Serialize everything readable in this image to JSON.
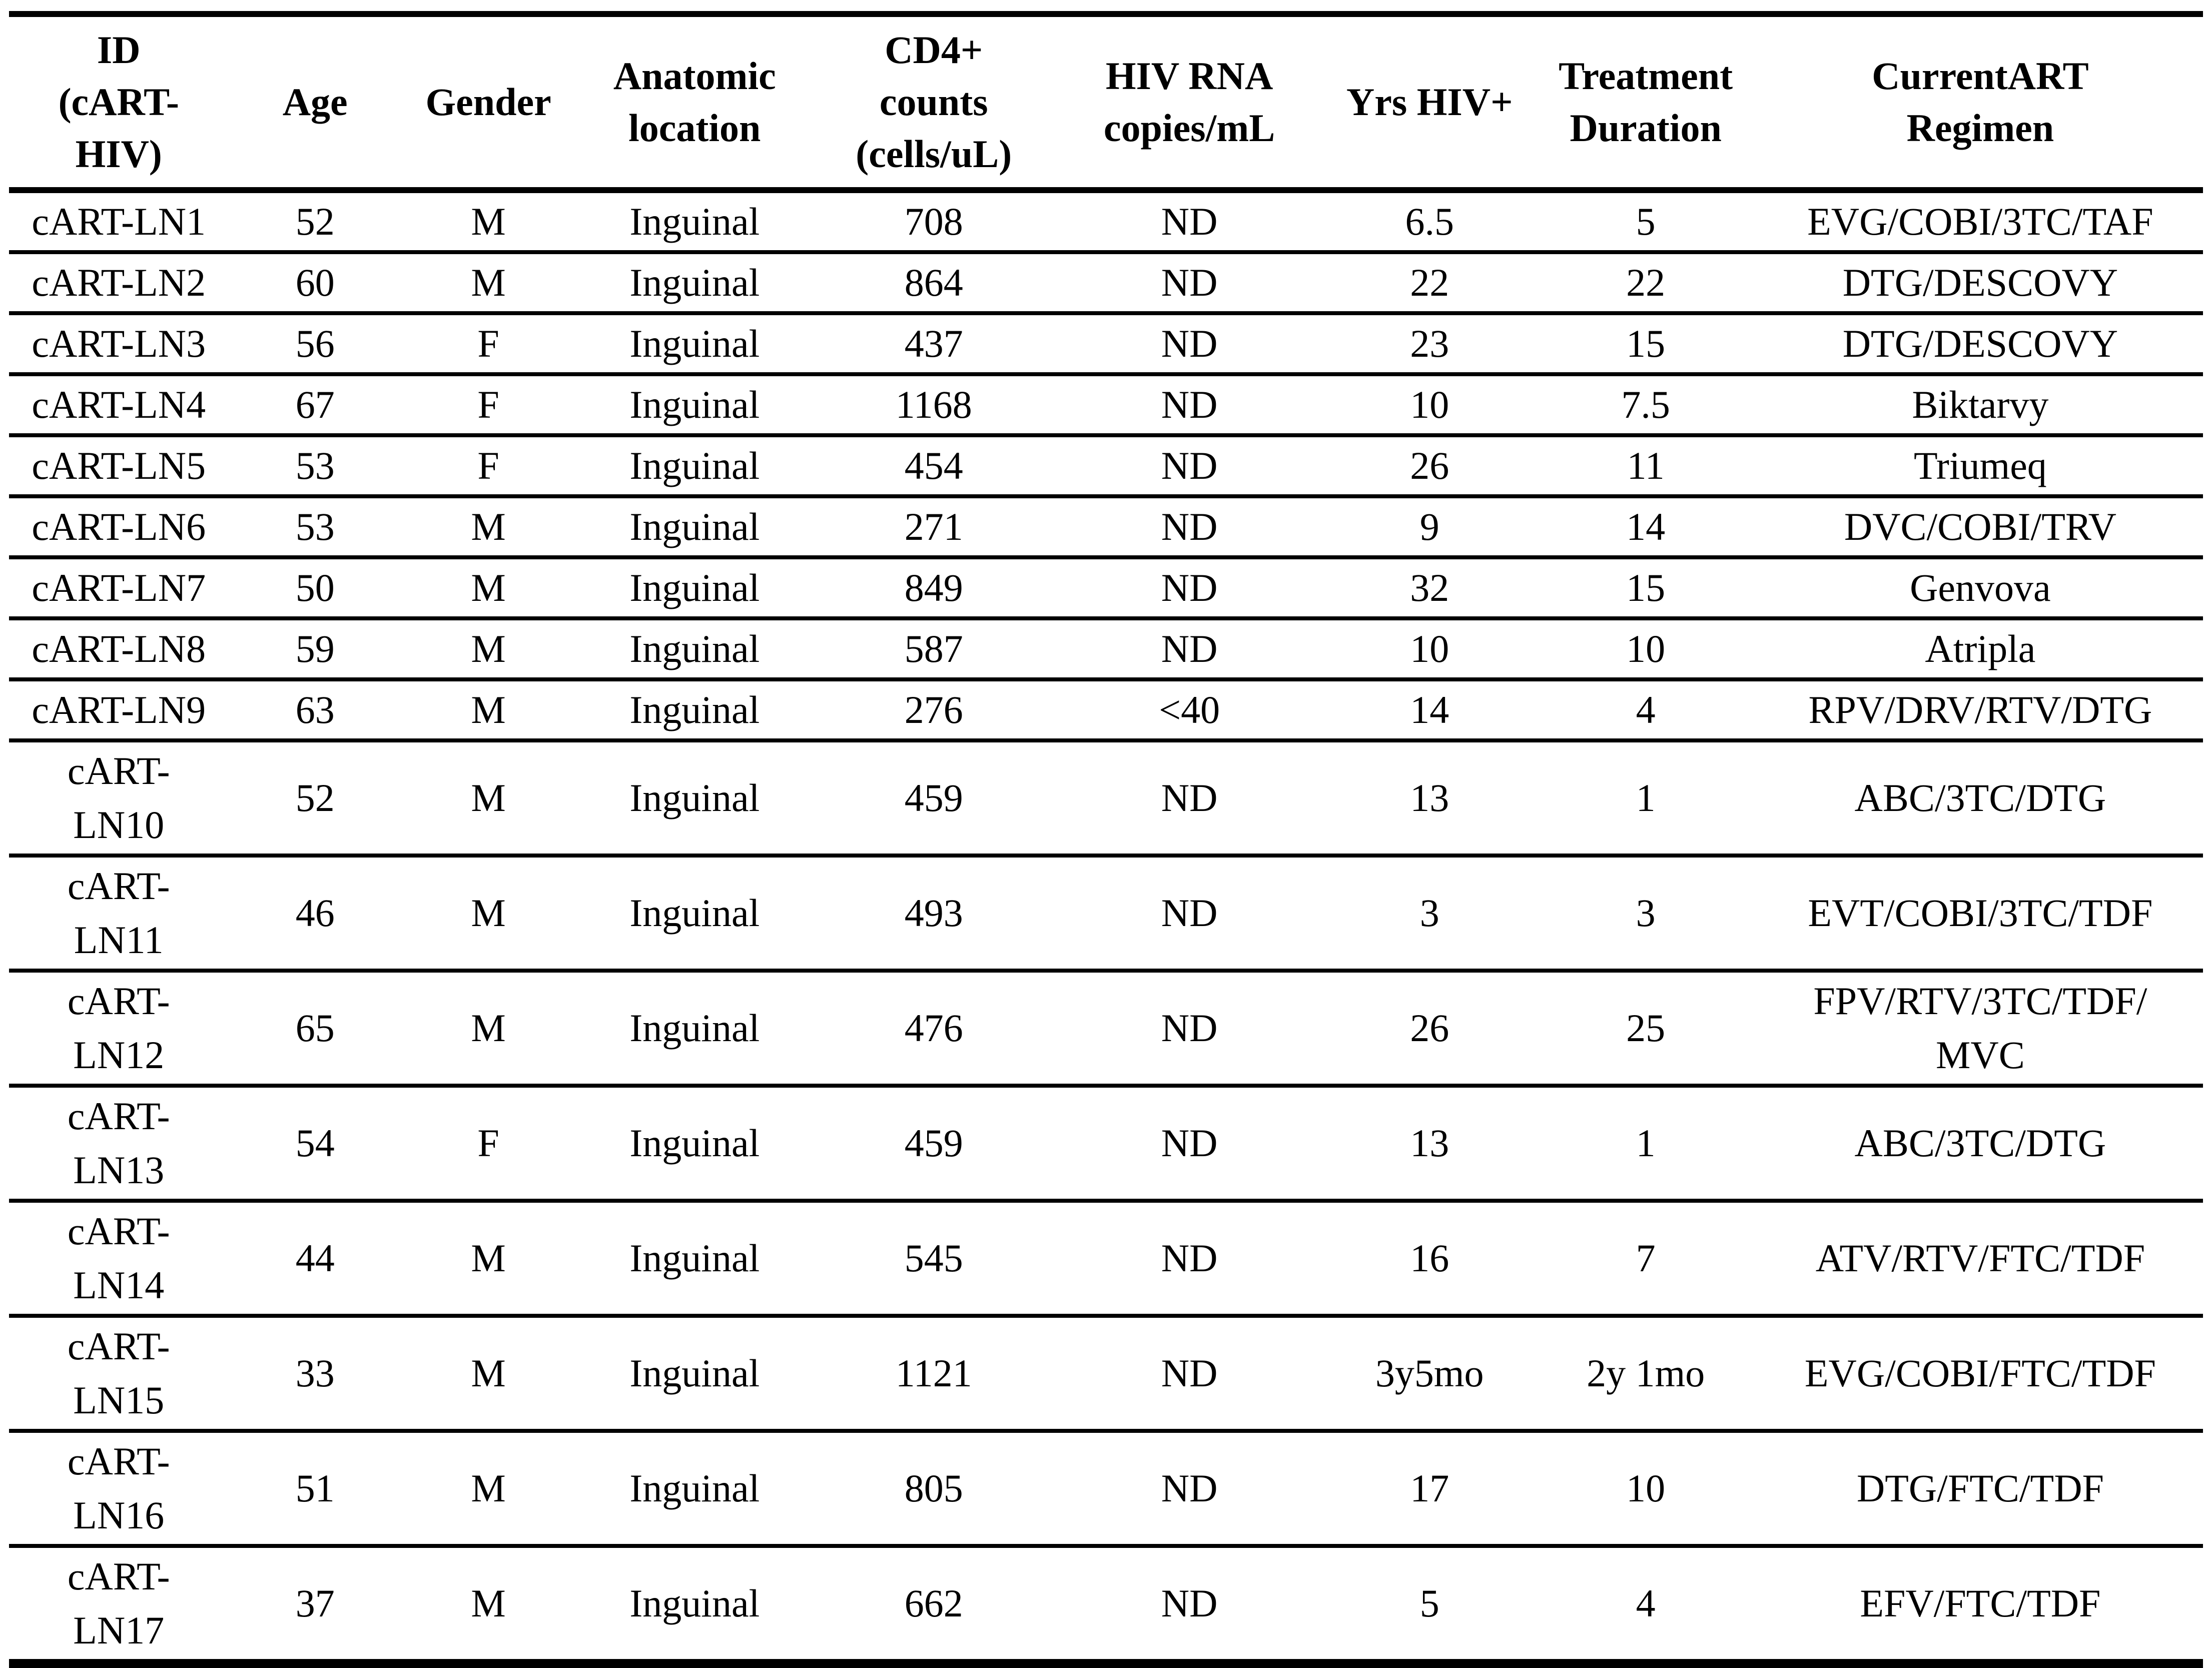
{
  "table": {
    "columns": [
      {
        "key": "id",
        "label": "ID\n(cART-\nHIV)"
      },
      {
        "key": "age",
        "label": "Age"
      },
      {
        "key": "gender",
        "label": "Gender"
      },
      {
        "key": "location",
        "label": "Anatomic\nlocation"
      },
      {
        "key": "cd4",
        "label": "CD4+\ncounts\n(cells/uL)"
      },
      {
        "key": "hiv_rna",
        "label": "HIV RNA\ncopies/mL"
      },
      {
        "key": "yrs_hiv",
        "label": "Yrs HIV+"
      },
      {
        "key": "treatment_duration",
        "label": "Treatment\nDuration"
      },
      {
        "key": "regimen",
        "label": "CurrentART\nRegimen"
      }
    ],
    "rows": [
      {
        "id": "cART-LN1",
        "age": "52",
        "gender": "M",
        "location": "Inguinal",
        "cd4": "708",
        "hiv_rna": "ND",
        "yrs_hiv": "6.5",
        "treatment_duration": "5",
        "regimen": "EVG/COBI/3TC/TAF"
      },
      {
        "id": "cART-LN2",
        "age": "60",
        "gender": "M",
        "location": "Inguinal",
        "cd4": "864",
        "hiv_rna": "ND",
        "yrs_hiv": "22",
        "treatment_duration": "22",
        "regimen": "DTG/DESCOVY"
      },
      {
        "id": "cART-LN3",
        "age": "56",
        "gender": "F",
        "location": "Inguinal",
        "cd4": "437",
        "hiv_rna": "ND",
        "yrs_hiv": "23",
        "treatment_duration": "15",
        "regimen": "DTG/DESCOVY"
      },
      {
        "id": "cART-LN4",
        "age": "67",
        "gender": "F",
        "location": "Inguinal",
        "cd4": "1168",
        "hiv_rna": "ND",
        "yrs_hiv": "10",
        "treatment_duration": "7.5",
        "regimen": "Biktarvy"
      },
      {
        "id": "cART-LN5",
        "age": "53",
        "gender": "F",
        "location": "Inguinal",
        "cd4": "454",
        "hiv_rna": "ND",
        "yrs_hiv": "26",
        "treatment_duration": "11",
        "regimen": "Triumeq"
      },
      {
        "id": "cART-LN6",
        "age": "53",
        "gender": "M",
        "location": "Inguinal",
        "cd4": "271",
        "hiv_rna": "ND",
        "yrs_hiv": "9",
        "treatment_duration": "14",
        "regimen": "DVC/COBI/TRV"
      },
      {
        "id": "cART-LN7",
        "age": "50",
        "gender": "M",
        "location": "Inguinal",
        "cd4": "849",
        "hiv_rna": "ND",
        "yrs_hiv": "32",
        "treatment_duration": "15",
        "regimen": "Genvova"
      },
      {
        "id": "cART-LN8",
        "age": "59",
        "gender": "M",
        "location": "Inguinal",
        "cd4": "587",
        "hiv_rna": "ND",
        "yrs_hiv": "10",
        "treatment_duration": "10",
        "regimen": "Atripla"
      },
      {
        "id": "cART-LN9",
        "age": "63",
        "gender": "M",
        "location": "Inguinal",
        "cd4": "276",
        "hiv_rna": "<40",
        "yrs_hiv": "14",
        "treatment_duration": "4",
        "regimen": "RPV/DRV/RTV/DTG"
      },
      {
        "id": "cART-\nLN10",
        "age": "52",
        "gender": "M",
        "location": "Inguinal",
        "cd4": "459",
        "hiv_rna": "ND",
        "yrs_hiv": "13",
        "treatment_duration": "1",
        "regimen": "ABC/3TC/DTG"
      },
      {
        "id": "cART-\nLN11",
        "age": "46",
        "gender": "M",
        "location": "Inguinal",
        "cd4": "493",
        "hiv_rna": "ND",
        "yrs_hiv": "3",
        "treatment_duration": "3",
        "regimen": "EVT/COBI/3TC/TDF"
      },
      {
        "id": "cART-\nLN12",
        "age": "65",
        "gender": "M",
        "location": "Inguinal",
        "cd4": "476",
        "hiv_rna": "ND",
        "yrs_hiv": "26",
        "treatment_duration": "25",
        "regimen": "FPV/RTV/3TC/TDF/\nMVC"
      },
      {
        "id": "cART-\nLN13",
        "age": "54",
        "gender": "F",
        "location": "Inguinal",
        "cd4": "459",
        "hiv_rna": "ND",
        "yrs_hiv": "13",
        "treatment_duration": "1",
        "regimen": "ABC/3TC/DTG"
      },
      {
        "id": "cART-\nLN14",
        "age": "44",
        "gender": "M",
        "location": "Inguinal",
        "cd4": "545",
        "hiv_rna": "ND",
        "yrs_hiv": "16",
        "treatment_duration": "7",
        "regimen": "ATV/RTV/FTC/TDF"
      },
      {
        "id": "cART-\nLN15",
        "age": "33",
        "gender": "M",
        "location": "Inguinal",
        "cd4": "1121",
        "hiv_rna": "ND",
        "yrs_hiv": "3y5mo",
        "treatment_duration": "2y 1mo",
        "regimen": "EVG/COBI/FTC/TDF"
      },
      {
        "id": "cART-\nLN16",
        "age": "51",
        "gender": "M",
        "location": "Inguinal",
        "cd4": "805",
        "hiv_rna": "ND",
        "yrs_hiv": "17",
        "treatment_duration": "10",
        "regimen": "DTG/FTC/TDF"
      },
      {
        "id": "cART-\nLN17",
        "age": "37",
        "gender": "M",
        "location": "Inguinal",
        "cd4": "662",
        "hiv_rna": "ND",
        "yrs_hiv": "5",
        "treatment_duration": "4",
        "regimen": "EFV/FTC/TDF"
      }
    ]
  }
}
